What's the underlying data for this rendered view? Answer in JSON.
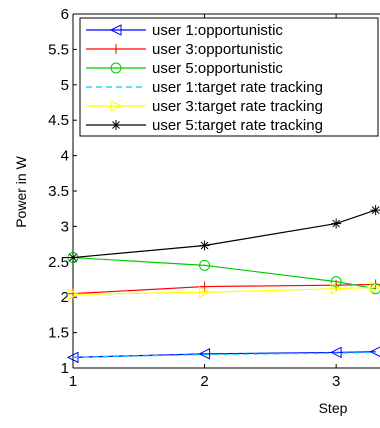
{
  "chart_data": {
    "type": "line",
    "xlabel": "Step",
    "ylabel": "Power in W",
    "xlim": [
      1,
      3.3
    ],
    "ylim": [
      1,
      6
    ],
    "x_ticks": [
      "1",
      "2",
      "3"
    ],
    "y_ticks": [
      "1",
      "1.5",
      "2",
      "2.5",
      "3",
      "3.5",
      "4",
      "4.5",
      "5",
      "5.5",
      "6"
    ],
    "grid": false,
    "legend_position": "top-left",
    "series": [
      {
        "name": "user 1:opportunistic",
        "color": "#0000ff",
        "line": "solid",
        "marker": "triangle-left",
        "x": [
          1,
          2,
          3,
          3.3
        ],
        "y": [
          1.15,
          1.2,
          1.22,
          1.23
        ]
      },
      {
        "name": "user 3:opportunistic",
        "color": "#ff0000",
        "line": "solid",
        "marker": "plus",
        "x": [
          1,
          2,
          3,
          3.3
        ],
        "y": [
          2.05,
          2.15,
          2.17,
          2.18
        ]
      },
      {
        "name": "user 5:opportunistic",
        "color": "#00cc00",
        "line": "solid",
        "marker": "circle",
        "x": [
          1,
          2,
          3,
          3.3
        ],
        "y": [
          2.56,
          2.45,
          2.22,
          2.12
        ]
      },
      {
        "name": "user 1:target rate tracking",
        "color": "#00ccff",
        "line": "dashed",
        "marker": "none",
        "x": [
          1,
          2,
          3,
          3.3
        ],
        "y": [
          1.15,
          1.19,
          1.21,
          1.22
        ]
      },
      {
        "name": "user 3:target rate tracking",
        "color": "#ffff00",
        "line": "solid",
        "marker": "triangle-right",
        "x": [
          1,
          2,
          3,
          3.3
        ],
        "y": [
          2.04,
          2.07,
          2.12,
          2.14
        ]
      },
      {
        "name": "user 5:target rate tracking",
        "color": "#000000",
        "line": "solid",
        "marker": "asterisk",
        "x": [
          1,
          2,
          3,
          3.3
        ],
        "y": [
          2.56,
          2.73,
          3.04,
          3.23
        ]
      }
    ]
  }
}
